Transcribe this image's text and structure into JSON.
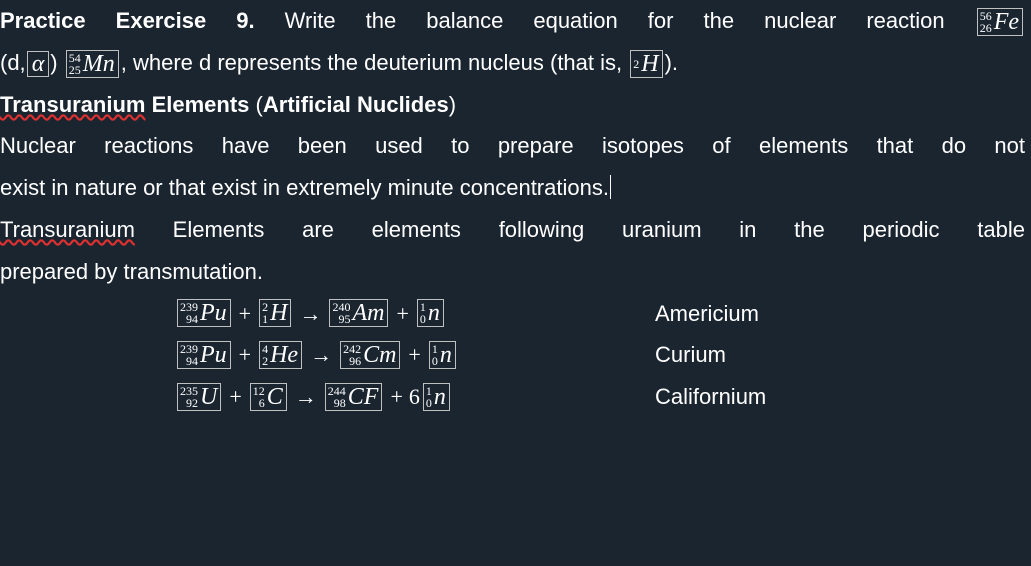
{
  "exercise": {
    "label_bold": "Practice Exercise 9.",
    "lead_text": " Write the balance equation for the nuclear reaction ",
    "fe": {
      "mass": "56",
      "z": "26",
      "sym": "Fe"
    },
    "line2_prefix": "(d,",
    "alpha": "α",
    "line2_mid": ") ",
    "mn": {
      "mass": "54",
      "z": "25",
      "sym": "Mn"
    },
    "line2_after": ", where d represents the deuterium nucleus (that is, ",
    "h2": {
      "mass": "2",
      "z": "",
      "sym": "H"
    },
    "line2_tail": ")."
  },
  "heading": {
    "t1_wavy": "Transuranium",
    "t1_rest": " Elements",
    "paren_open": " (",
    "t2": "Artificial Nuclides",
    "paren_close": ")"
  },
  "body": {
    "p1a": "Nuclear reactions have been used to prepare isotopes of elements that do not",
    "p1b_before": "exist in nature or that exist in extremely minute concentrations.",
    "p2a_wavy": "Transuranium",
    "p2a_rest": " Elements are elements following uranium in the periodic table",
    "p2b": "prepared by transmutation."
  },
  "equations": [
    {
      "name": "Americium",
      "terms": [
        {
          "mass": "239",
          "z": "94",
          "sym": "Pu"
        },
        {
          "op": "+"
        },
        {
          "mass": "2",
          "z": "1",
          "sym": "H"
        },
        {
          "op": "→"
        },
        {
          "mass": "240",
          "z": "95",
          "sym": "Am"
        },
        {
          "op": "+"
        },
        {
          "mass": "1",
          "z": "0",
          "sym": "n"
        }
      ]
    },
    {
      "name": "Curium",
      "terms": [
        {
          "mass": "239",
          "z": "94",
          "sym": "Pu"
        },
        {
          "op": "+"
        },
        {
          "mass": "4",
          "z": "2",
          "sym": "He"
        },
        {
          "op": "→"
        },
        {
          "mass": "242",
          "z": "96",
          "sym": "Cm"
        },
        {
          "op": "+"
        },
        {
          "mass": "1",
          "z": "0",
          "sym": "n"
        }
      ]
    },
    {
      "name": "Californium",
      "terms": [
        {
          "mass": "235",
          "z": "92",
          "sym": "U"
        },
        {
          "op": "+"
        },
        {
          "mass": "12",
          "z": "6",
          "sym": "C"
        },
        {
          "op": "→"
        },
        {
          "mass": "244",
          "z": "98",
          "sym": "CF"
        },
        {
          "op": "+"
        },
        {
          "coef": "6"
        },
        {
          "mass": "1",
          "z": "0",
          "sym": "n"
        }
      ]
    }
  ]
}
